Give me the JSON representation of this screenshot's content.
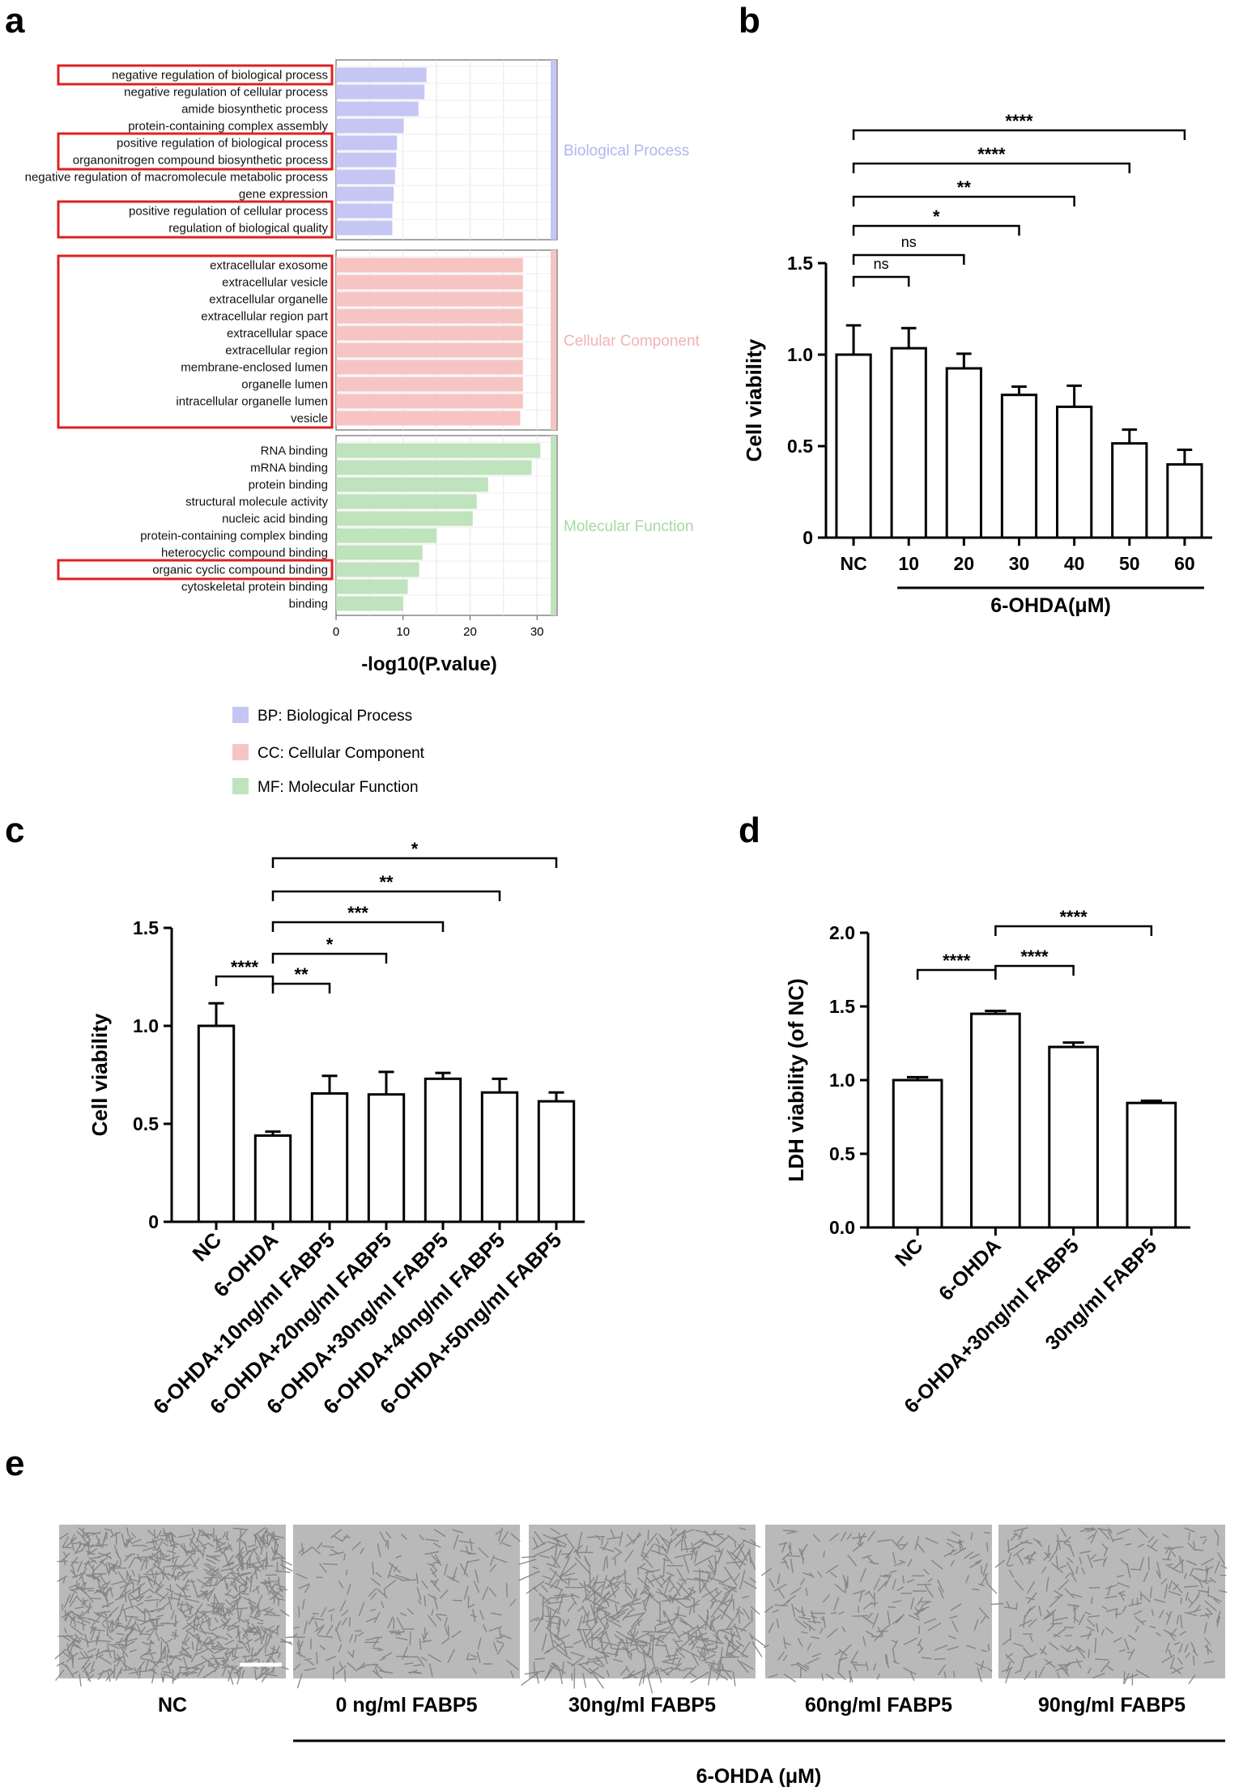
{
  "panel_labels": {
    "a": "a",
    "b": "b",
    "c": "c",
    "d": "d",
    "e": "e"
  },
  "colors": {
    "bp": "#c5c6f4",
    "cc": "#f7c4c4",
    "mf": "#bfe3bc",
    "bp_text": "#b3b4ee",
    "cc_text": "#f2b3b3",
    "mf_text": "#a7d9a2",
    "highlight": "#e02020"
  },
  "chart_data": [
    {
      "id": "a",
      "type": "bar",
      "orientation": "horizontal",
      "title": "",
      "xlabel": "-log10(P.value)",
      "xlim": [
        0,
        33
      ],
      "xticks": [
        0,
        10,
        20,
        30
      ],
      "groups": [
        {
          "key": "bp",
          "name": "Biological Process",
          "terms": [
            "negative regulation of biological process",
            "negative regulation of cellular process",
            "amide biosynthetic process",
            "protein-containing complex assembly",
            "positive regulation of biological process",
            "organonitrogen compound biosynthetic process",
            "negative regulation of macromolecule metabolic process",
            "gene expression",
            "positive regulation of cellular process",
            "regulation of biological quality"
          ],
          "values": [
            13.5,
            13.2,
            12.3,
            10.1,
            9.1,
            9.0,
            8.8,
            8.6,
            8.4,
            8.4
          ]
        },
        {
          "key": "cc",
          "name": "Cellular Component",
          "terms": [
            "extracellular exosome",
            "extracellular vesicle",
            "extracellular organelle",
            "extracellular region part",
            "extracellular space",
            "extracellular region",
            "membrane-enclosed lumen",
            "organelle lumen",
            "intracellular organelle lumen",
            "vesicle"
          ],
          "values": [
            27.9,
            27.9,
            27.9,
            27.9,
            27.9,
            27.9,
            27.9,
            27.9,
            27.9,
            27.5
          ]
        },
        {
          "key": "mf",
          "name": "Molecular Function",
          "terms": [
            "RNA binding",
            "mRNA binding",
            "protein binding",
            "structural molecule activity",
            "nucleic acid binding",
            "protein-containing complex binding",
            "heterocyclic compound binding",
            "organic cyclic compound binding",
            "cytoskeletal protein binding",
            "binding"
          ],
          "values": [
            30.5,
            29.2,
            22.7,
            21.0,
            20.4,
            15.0,
            12.9,
            12.4,
            10.7,
            10.0
          ]
        }
      ],
      "highlighted": [
        [
          "bp",
          0,
          0
        ],
        [
          "bp",
          4,
          5
        ],
        [
          "bp",
          8,
          9
        ],
        [
          "cc",
          0,
          9
        ],
        [
          "mf",
          7,
          7
        ]
      ],
      "legend": [
        "BP: Biological Process",
        "CC: Cellular Component",
        "MF: Molecular Function"
      ]
    },
    {
      "id": "b",
      "type": "bar",
      "ylabel": "Cell viability",
      "ylim": [
        0,
        1.5
      ],
      "yticks": [
        "0",
        "0.5",
        "1.0",
        "1.5"
      ],
      "categories": [
        "NC",
        "10",
        "20",
        "30",
        "40",
        "50",
        "60"
      ],
      "values": [
        1.0,
        1.035,
        0.925,
        0.78,
        0.715,
        0.515,
        0.4
      ],
      "errors": [
        0.16,
        0.11,
        0.08,
        0.045,
        0.115,
        0.075,
        0.08
      ],
      "group_label": "6-OHDA(μM)",
      "comparisons": [
        {
          "from": 0,
          "to": 1,
          "label": "ns"
        },
        {
          "from": 0,
          "to": 2,
          "label": "ns"
        },
        {
          "from": 0,
          "to": 3,
          "label": "*"
        },
        {
          "from": 0,
          "to": 4,
          "label": "**"
        },
        {
          "from": 0,
          "to": 5,
          "label": "****"
        },
        {
          "from": 0,
          "to": 6,
          "label": "****"
        }
      ]
    },
    {
      "id": "c",
      "type": "bar",
      "ylabel": "Cell viability",
      "ylim": [
        0,
        1.5
      ],
      "yticks": [
        "0",
        "0.5",
        "1.0",
        "1.5"
      ],
      "categories": [
        "NC",
        "6-OHDA",
        "6-OHDA+10ng/ml FABP5",
        "6-OHDA+20ng/ml FABP5",
        "6-OHDA+30ng/ml FABP5",
        "6-OHDA+40ng/ml FABP5",
        "6-OHDA+50ng/ml FABP5"
      ],
      "values": [
        1.0,
        0.44,
        0.655,
        0.65,
        0.73,
        0.66,
        0.615
      ],
      "errors": [
        0.115,
        0.02,
        0.09,
        0.115,
        0.03,
        0.07,
        0.045
      ],
      "comparisons": [
        {
          "from": 0,
          "to": 1,
          "label": "****"
        },
        {
          "from": 1,
          "to": 2,
          "label": "**"
        },
        {
          "from": 1,
          "to": 3,
          "label": "*"
        },
        {
          "from": 1,
          "to": 4,
          "label": "***"
        },
        {
          "from": 1,
          "to": 5,
          "label": "**"
        },
        {
          "from": 1,
          "to": 6,
          "label": "*"
        }
      ]
    },
    {
      "id": "d",
      "type": "bar",
      "ylabel": "LDH viability (of NC)",
      "ylim": [
        0,
        2.0
      ],
      "yticks": [
        "0.0",
        "0.5",
        "1.0",
        "1.5",
        "2.0"
      ],
      "categories": [
        "NC",
        "6-OHDA",
        "6-OHDA+30ng/ml FABP5",
        "30ng/ml FABP5"
      ],
      "values": [
        1.0,
        1.45,
        1.225,
        0.845
      ],
      "errors": [
        0.02,
        0.02,
        0.03,
        0.015
      ],
      "comparisons": [
        {
          "from": 0,
          "to": 1,
          "label": "****"
        },
        {
          "from": 1,
          "to": 2,
          "label": "****"
        },
        {
          "from": 1,
          "to": 3,
          "label": "****"
        }
      ]
    }
  ],
  "panel_e": {
    "images": [
      {
        "key": "nc",
        "label": "NC",
        "density": 900
      },
      {
        "key": "f0",
        "label": "0 ng/ml FABP5",
        "density": 230
      },
      {
        "key": "f30",
        "label": "30ng/ml FABP5",
        "density": 520
      },
      {
        "key": "f60",
        "label": "60ng/ml FABP5",
        "density": 240
      },
      {
        "key": "f90",
        "label": "90ng/ml FABP5",
        "density": 300
      }
    ],
    "group_label": "6-OHDA (μM)"
  }
}
